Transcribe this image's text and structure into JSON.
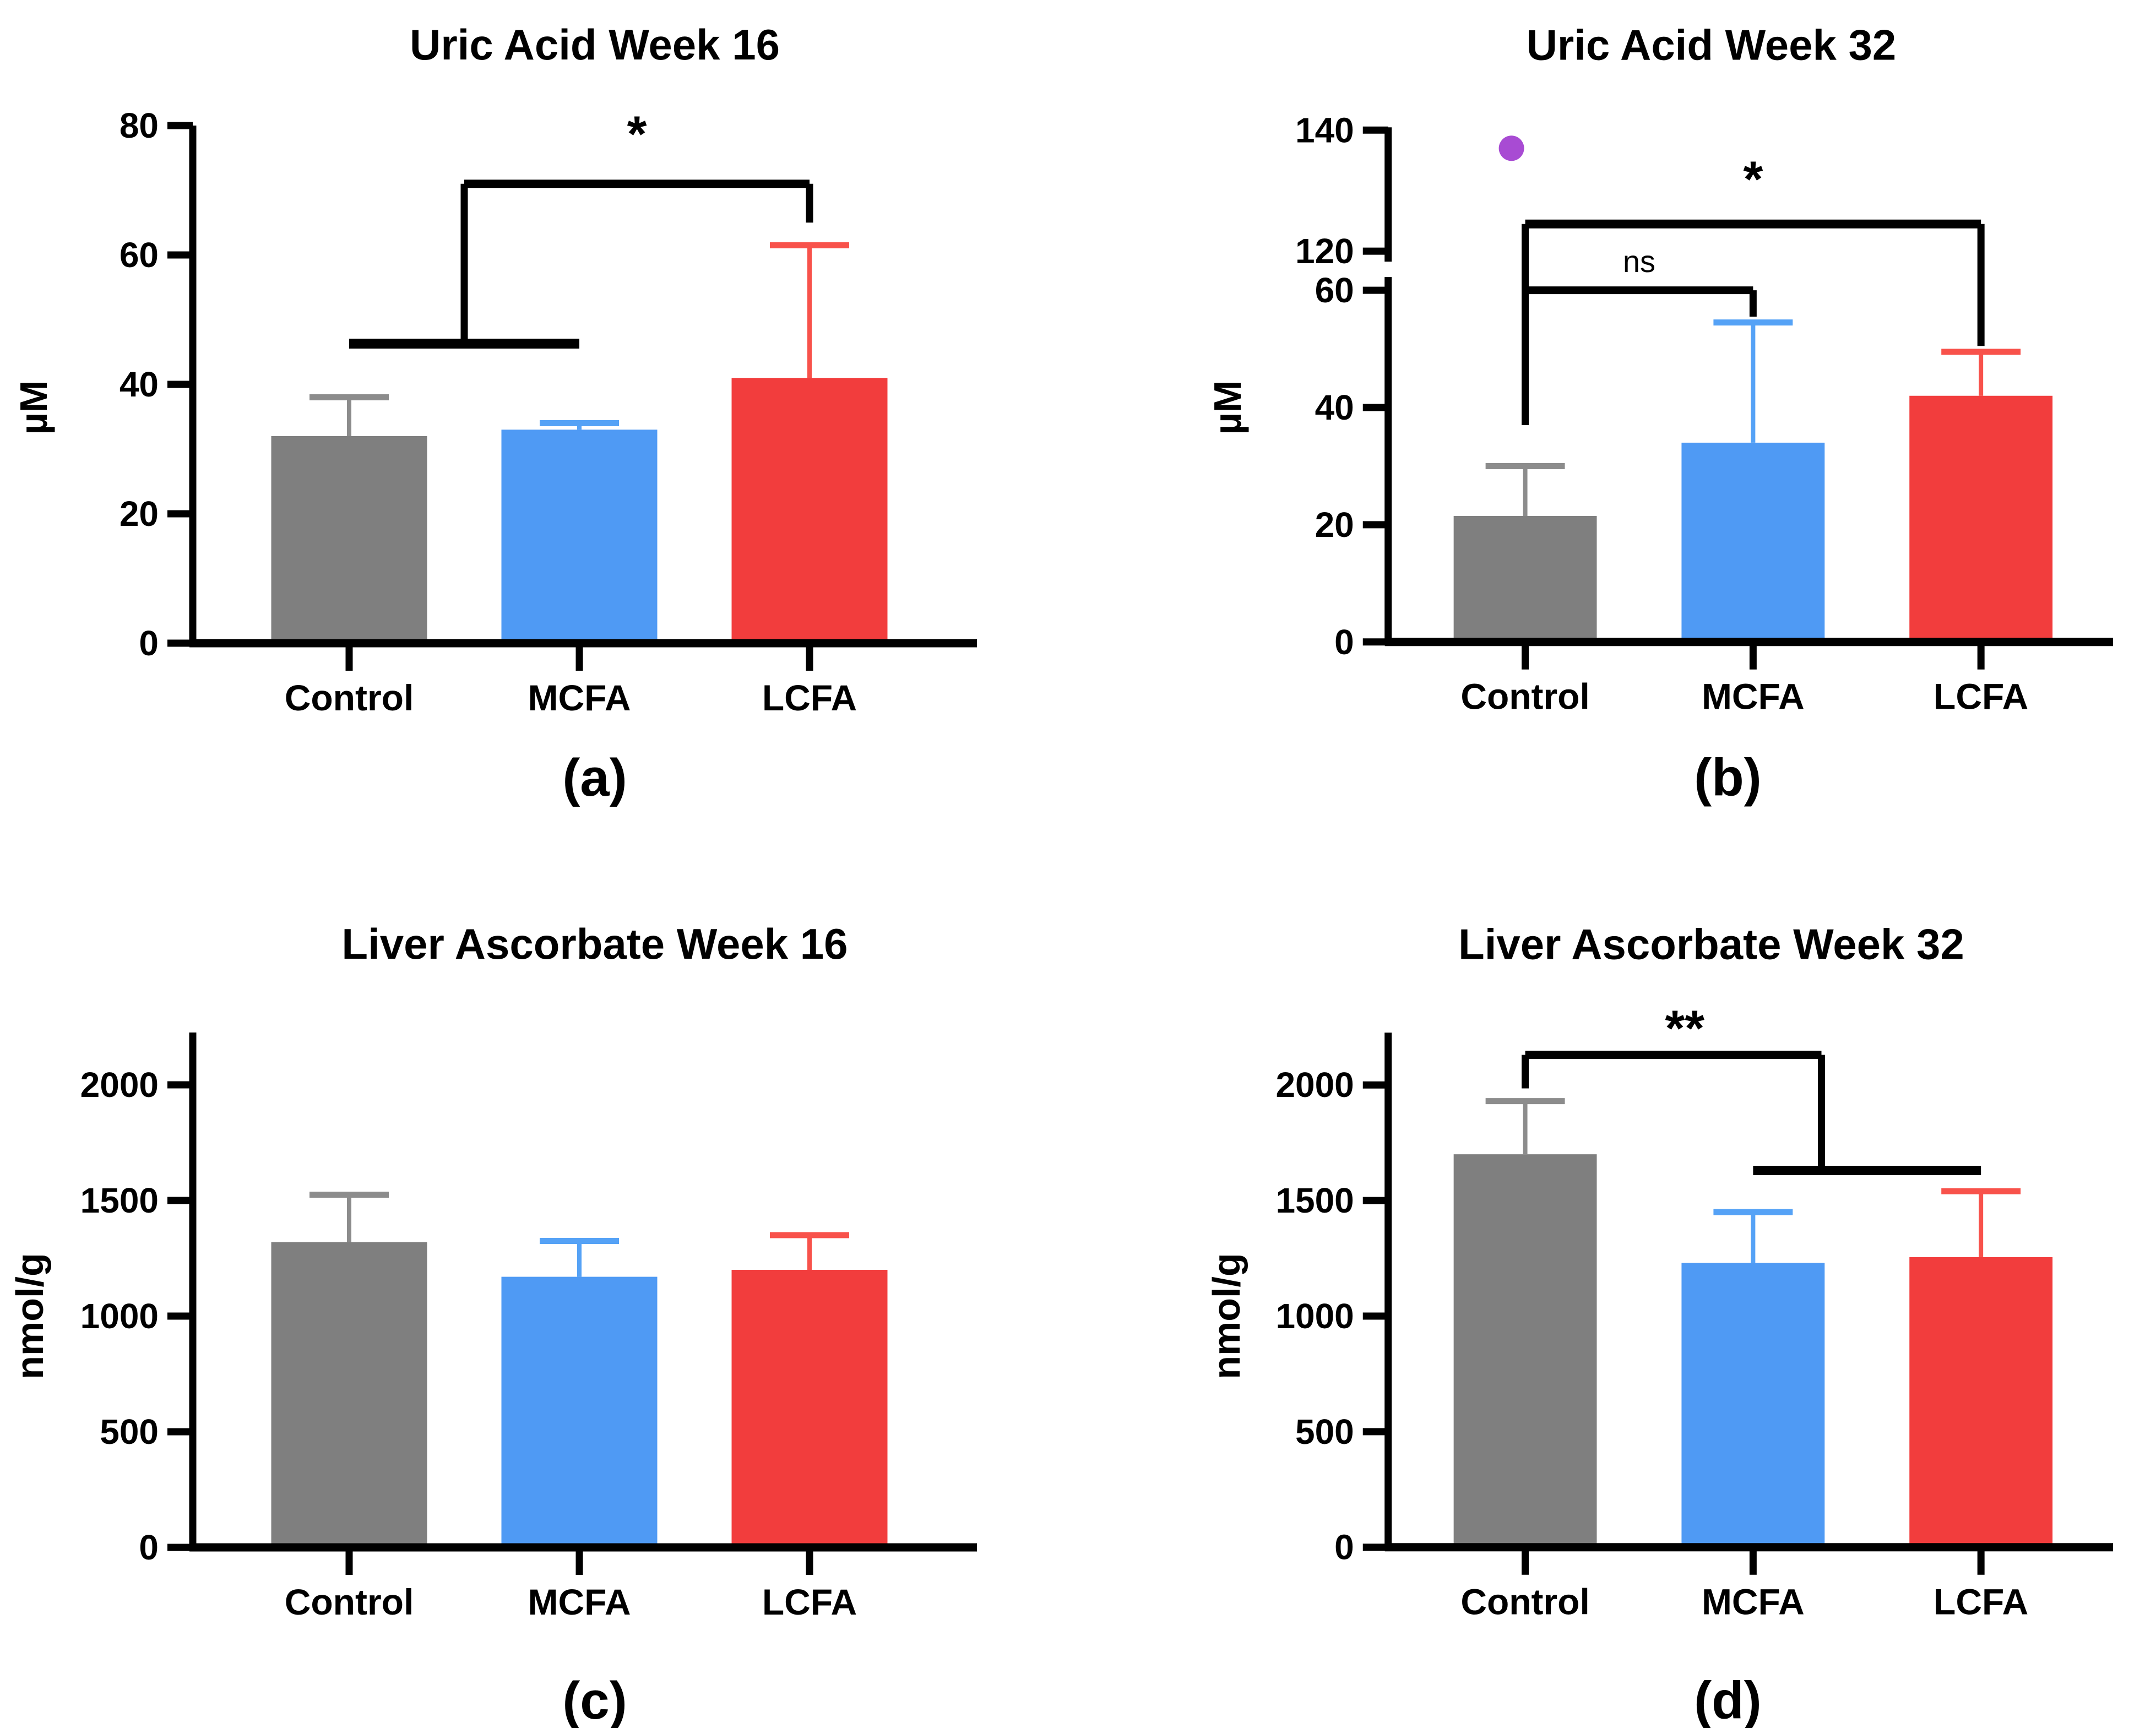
{
  "page": {
    "background": "#FFFFFF"
  },
  "chart_data": [
    {
      "id": "a",
      "type": "bar",
      "title": "Uric Acid Week 16",
      "ylabel": "µM",
      "caption": "(a)",
      "categories": [
        "Control",
        "MCFA",
        "LCFA"
      ],
      "values": [
        32,
        33,
        41
      ],
      "error_tops": [
        38,
        34,
        61.5
      ],
      "bar_colors": [
        "#7F7F7F",
        "#4F9AF4",
        "#F23D3D"
      ],
      "error_colors": [
        "#8C8C8C",
        "#55A2F6",
        "#F8524B"
      ],
      "ylim": [
        0,
        80
      ],
      "yticks": [
        0,
        20,
        40,
        60,
        80
      ],
      "grid": false,
      "legend": "none",
      "annotations": [
        {
          "label": "*",
          "label_x": 1.25,
          "label_y": 76,
          "segments": [
            {
              "x1": 0,
              "y1": 46.3,
              "x2": 1,
              "y2": 46.3,
              "w": 18
            },
            {
              "x1": 0.5,
              "y1": 46.3,
              "x2": 0.5,
              "y2": 71
            },
            {
              "x1": 0.5,
              "y1": 71,
              "x2": 2,
              "y2": 71,
              "w": 15
            },
            {
              "x1": 2,
              "y1": 71,
              "x2": 2,
              "y2": 65
            }
          ]
        }
      ]
    },
    {
      "id": "b",
      "type": "bar",
      "title": "Uric Acid Week 32",
      "ylabel": "µM",
      "caption": "(b)",
      "categories": [
        "Control",
        "MCFA",
        "LCFA"
      ],
      "values": [
        21.5,
        34,
        42
      ],
      "error_tops": [
        30,
        54.5,
        49.5
      ],
      "bar_colors": [
        "#7F7F7F",
        "#4F9AF4",
        "#F23D3D"
      ],
      "error_colors": [
        "#8C8C8C",
        "#55A2F6",
        "#F8524B"
      ],
      "axis_break": {
        "lower_max": 60,
        "upper_min": 120
      },
      "ylim": [
        0,
        60
      ],
      "ylim_upper": [
        120,
        140
      ],
      "yticks": [
        0,
        20,
        40,
        60
      ],
      "yticks_upper": [
        120,
        140
      ],
      "grid": false,
      "legend": "none",
      "outlier": {
        "category": "Control",
        "value": 137,
        "color": "#A84BD3"
      },
      "annotations": [
        {
          "label": "*",
          "label_x": 1,
          "label_y": 129,
          "segments": [
            {
              "x1": 0,
              "y1": 124.5,
              "x2": 0,
              "y2": 37
            },
            {
              "x1": 0,
              "y1": 124.5,
              "x2": 2,
              "y2": 124.5,
              "w": 16
            },
            {
              "x1": 2,
              "y1": 124.5,
              "x2": 2,
              "y2": 50.5
            }
          ]
        },
        {
          "label": "ns",
          "label_x": 0.5,
          "label_y": 88,
          "segments": [
            {
              "x1": 0,
              "y1": 60,
              "x2": 1,
              "y2": 60,
              "w": 14
            },
            {
              "x1": 1,
              "y1": 60,
              "x2": 1,
              "y2": 55.5
            }
          ]
        }
      ]
    },
    {
      "id": "c",
      "type": "bar",
      "title": "Liver Ascorbate Week 16",
      "ylabel": "nmol/g",
      "caption": "(c)",
      "categories": [
        "Control",
        "MCFA",
        "LCFA"
      ],
      "values": [
        1320,
        1170,
        1200
      ],
      "error_tops": [
        1525,
        1325,
        1350
      ],
      "bar_colors": [
        "#7F7F7F",
        "#4F9AF4",
        "#F23D3D"
      ],
      "error_colors": [
        "#8C8C8C",
        "#55A2F6",
        "#F8524B"
      ],
      "ylim": [
        0,
        2225
      ],
      "yticks": [
        0,
        500,
        1000,
        1500,
        2000
      ],
      "grid": false,
      "legend": "none",
      "annotations": []
    },
    {
      "id": "d",
      "type": "bar",
      "title": "Liver Ascorbate Week 32",
      "ylabel": "nmol/g",
      "caption": "(d)",
      "categories": [
        "Control",
        "MCFA",
        "LCFA"
      ],
      "values": [
        1700,
        1230,
        1255
      ],
      "error_tops": [
        1930,
        1450,
        1540
      ],
      "bar_colors": [
        "#7F7F7F",
        "#4F9AF4",
        "#F23D3D"
      ],
      "error_colors": [
        "#8C8C8C",
        "#55A2F6",
        "#F8524B"
      ],
      "ylim": [
        0,
        2225
      ],
      "yticks": [
        0,
        500,
        1000,
        1500,
        2000
      ],
      "grid": false,
      "legend": "none",
      "annotations": [
        {
          "label": "**",
          "label_x": 0.7,
          "label_y": 2170,
          "segments": [
            {
              "x1": 0,
              "y1": 1985,
              "x2": 0,
              "y2": 2130
            },
            {
              "x1": 0,
              "y1": 2130,
              "x2": 1.3,
              "y2": 2130,
              "w": 15
            },
            {
              "x1": 1.3,
              "y1": 2130,
              "x2": 1.3,
              "y2": 1630
            },
            {
              "x1": 1,
              "y1": 1630,
              "x2": 2,
              "y2": 1630,
              "w": 17
            }
          ]
        }
      ]
    }
  ]
}
